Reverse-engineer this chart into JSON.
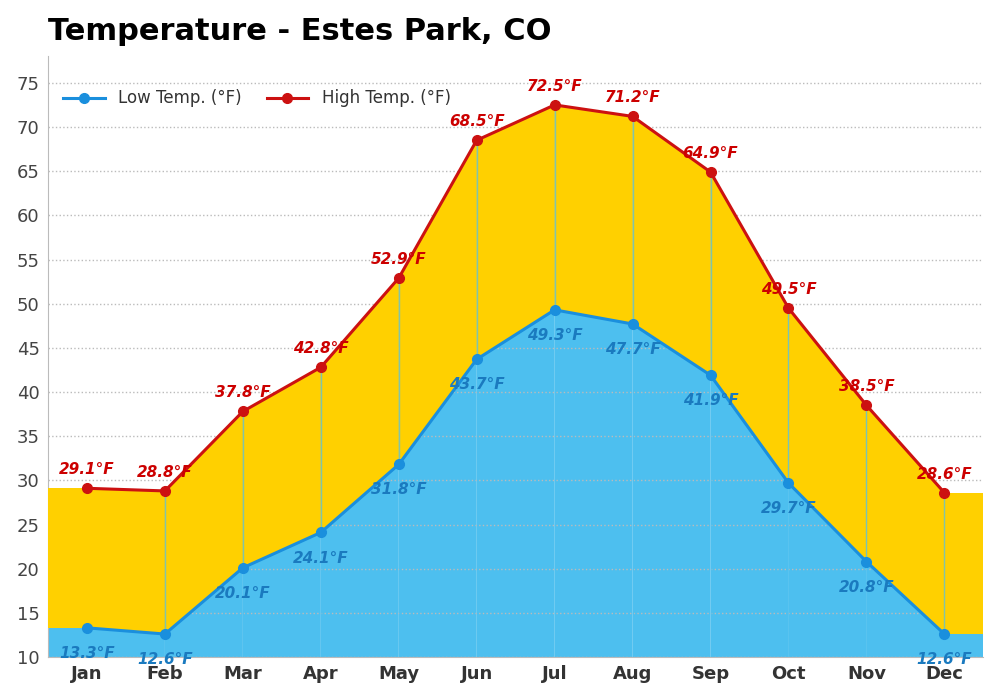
{
  "months": [
    "Jan",
    "Feb",
    "Mar",
    "Apr",
    "May",
    "Jun",
    "Jul",
    "Aug",
    "Sep",
    "Oct",
    "Nov",
    "Dec"
  ],
  "low_temps": [
    13.3,
    12.6,
    20.1,
    24.1,
    31.8,
    43.7,
    49.3,
    47.7,
    41.9,
    29.7,
    20.8,
    12.6
  ],
  "high_temps": [
    29.1,
    28.8,
    37.8,
    42.8,
    52.9,
    68.5,
    72.5,
    71.2,
    64.9,
    49.5,
    38.5,
    28.6
  ],
  "low_color": "#1a8fdd",
  "high_color": "#cc1111",
  "low_fill_color": "#4dbfef",
  "high_fill_color": "#ffd000",
  "title": "Temperature - Estes Park, CO",
  "title_fontsize": 22,
  "title_fontweight": "bold",
  "legend_low_label": "Low Temp. (°F)",
  "legend_high_label": "High Temp. (°F)",
  "ylim": [
    10,
    78
  ],
  "yticks": [
    10,
    15,
    20,
    25,
    30,
    35,
    40,
    45,
    50,
    55,
    60,
    65,
    70,
    75
  ],
  "bg_color": "#ffffff",
  "grid_color": "#bbbbbb",
  "low_label_color": "#1a7abf",
  "high_label_color": "#cc0000",
  "label_fontsize": 11,
  "axis_label_fontsize": 13,
  "line_width": 2.2,
  "marker_size": 7
}
